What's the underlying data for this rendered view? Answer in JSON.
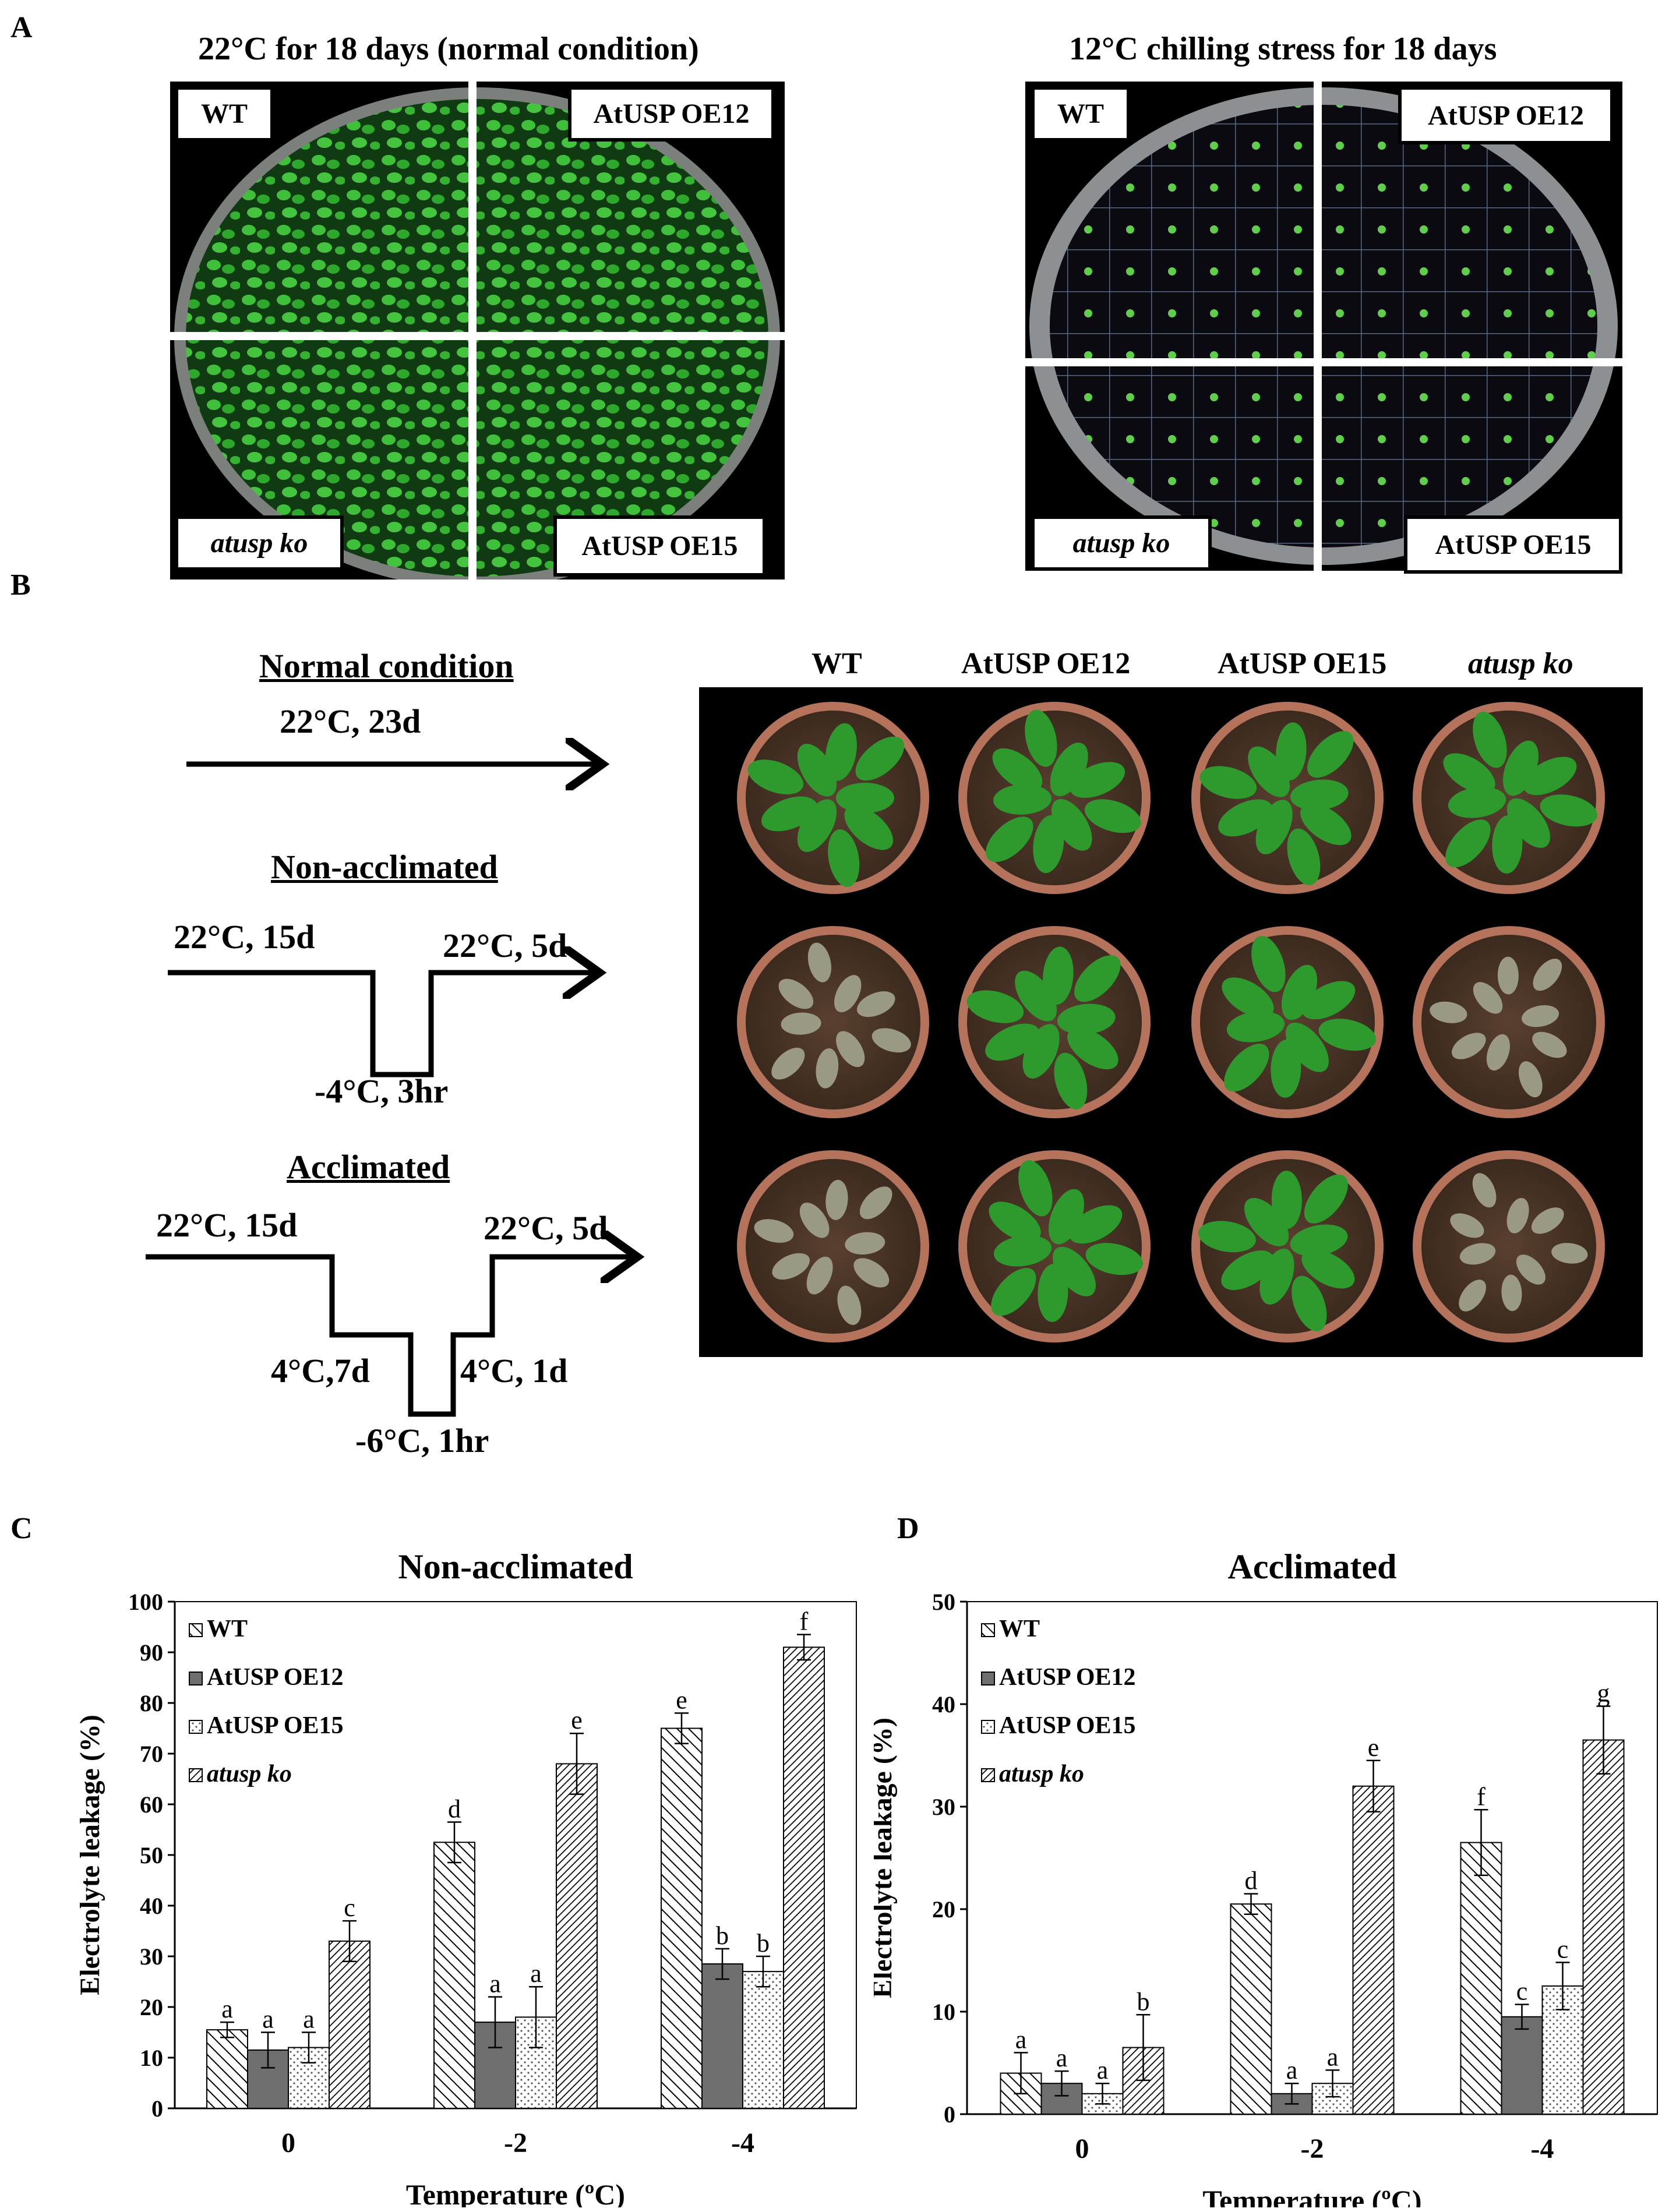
{
  "panels": {
    "a_letter": "A",
    "b_letter": "B",
    "c_letter": "C",
    "d_letter": "D"
  },
  "panel_a": {
    "left_title": "22°C  for 18 days (normal condition)",
    "right_title": "12°C chilling stress for 18 days",
    "labels": [
      "WT",
      "AtUSP OE12",
      "atusp ko",
      "AtUSP OE15"
    ]
  },
  "panel_b": {
    "normal_title": "Normal condition",
    "normal_temp": "22°C,  23d",
    "nonacc_title": "Non-acclimated",
    "nonacc_start": "22°C, 15d",
    "nonacc_end": "22°C, 5d",
    "nonacc_low": "-4°C, 3hr",
    "acc_title": "Acclimated",
    "acc_start": "22°C, 15d",
    "acc_end": "22°C, 5d",
    "acc_mid1": "4°C,7d",
    "acc_mid2": "4°C, 1d",
    "acc_low": "-6°C, 1hr",
    "columns": [
      "WT",
      "AtUSP OE12",
      "AtUSP OE15",
      "atusp ko"
    ]
  },
  "colors": {
    "plant_green": "#2e9a2e",
    "soil": "#4a3322",
    "pot": "#b4735a",
    "dark_bar": "#6e6e6e"
  },
  "chart_data": [
    {
      "type": "bar",
      "title": "Non-acclimated",
      "xlabel": "Temperature (ºC)",
      "ylabel": "Electrolyte leakage (%)",
      "categories": [
        "0",
        "-2",
        "-4"
      ],
      "ylim": [
        0,
        100
      ],
      "yticks": [
        0,
        10,
        20,
        30,
        40,
        50,
        60,
        70,
        80,
        90,
        100
      ],
      "legend_position": "top-left",
      "series": [
        {
          "name": "WT",
          "pattern": "diag-right",
          "values": [
            15.5,
            52.5,
            75
          ],
          "errors": [
            1.5,
            4,
            3
          ],
          "letters": [
            "a",
            "d",
            "e"
          ]
        },
        {
          "name": "AtUSP OE12",
          "pattern": "solid-gray",
          "values": [
            11.5,
            17,
            28.5
          ],
          "errors": [
            3.5,
            5,
            3
          ],
          "letters": [
            "a",
            "a",
            "b"
          ]
        },
        {
          "name": "AtUSP OE15",
          "pattern": "dots",
          "values": [
            12,
            18,
            27
          ],
          "errors": [
            3,
            6,
            3
          ],
          "letters": [
            "a",
            "a",
            "b"
          ]
        },
        {
          "name": "atusp ko",
          "pattern": "diag-dense",
          "values": [
            33,
            68,
            91
          ],
          "errors": [
            4,
            6,
            2.5
          ],
          "letters": [
            "c",
            "e",
            "f"
          ]
        }
      ]
    },
    {
      "type": "bar",
      "title": "Acclimated",
      "xlabel": "Temperature (ºC)",
      "ylabel": "Electrolyte leakage (%)",
      "categories": [
        "0",
        "-2",
        "-4"
      ],
      "ylim": [
        0,
        50
      ],
      "yticks": [
        0,
        10,
        20,
        30,
        40,
        50
      ],
      "legend_position": "top-left",
      "series": [
        {
          "name": "WT",
          "pattern": "diag-right",
          "values": [
            4,
            20.5,
            26.5
          ],
          "errors": [
            2,
            1,
            3.2
          ],
          "letters": [
            "a",
            "d",
            "f"
          ]
        },
        {
          "name": "AtUSP OE12",
          "pattern": "solid-gray",
          "values": [
            3,
            2,
            9.5
          ],
          "errors": [
            1.2,
            1,
            1.2
          ],
          "letters": [
            "a",
            "a",
            "c"
          ]
        },
        {
          "name": "AtUSP OE15",
          "pattern": "dots",
          "values": [
            2,
            3,
            12.5
          ],
          "errors": [
            1,
            1.3,
            2.3
          ],
          "letters": [
            "a",
            "a",
            "c"
          ]
        },
        {
          "name": "atusp ko",
          "pattern": "diag-dense",
          "values": [
            6.5,
            32,
            36.5
          ],
          "errors": [
            3.2,
            2.5,
            3.3
          ],
          "letters": [
            "b",
            "e",
            "g"
          ]
        }
      ]
    }
  ]
}
